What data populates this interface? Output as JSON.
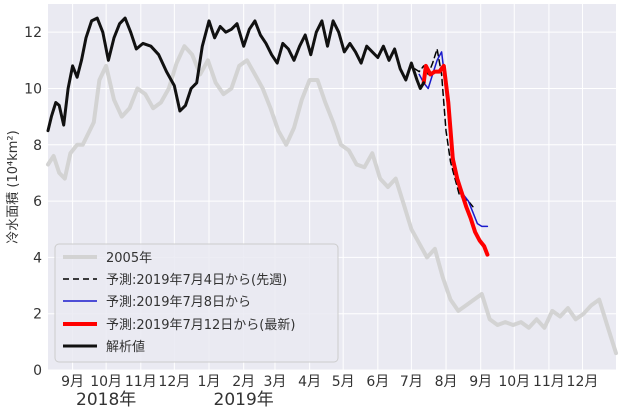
{
  "chart_data": {
    "type": "line",
    "ylabel": "冷水面積 (10⁴km²)",
    "ylim": [
      0,
      13
    ],
    "y_ticks": [
      0,
      2,
      4,
      6,
      8,
      10,
      12
    ],
    "x_range": [
      "2018-08-10",
      "2019-12-31"
    ],
    "x_ticks": [
      {
        "date": "2018-09-01",
        "label": "9月"
      },
      {
        "date": "2018-10-01",
        "label": "10月"
      },
      {
        "date": "2018-11-01",
        "label": "11月"
      },
      {
        "date": "2018-12-01",
        "label": "12月"
      },
      {
        "date": "2019-01-01",
        "label": "1月"
      },
      {
        "date": "2019-02-01",
        "label": "2月"
      },
      {
        "date": "2019-03-01",
        "label": "3月"
      },
      {
        "date": "2019-04-01",
        "label": "4月"
      },
      {
        "date": "2019-05-01",
        "label": "5月"
      },
      {
        "date": "2019-06-01",
        "label": "6月"
      },
      {
        "date": "2019-07-01",
        "label": "7月"
      },
      {
        "date": "2019-08-01",
        "label": "8月"
      },
      {
        "date": "2019-09-01",
        "label": "9月"
      },
      {
        "date": "2019-10-01",
        "label": "10月"
      },
      {
        "date": "2019-11-01",
        "label": "11月"
      },
      {
        "date": "2019-12-01",
        "label": "12月"
      }
    ],
    "year_labels": [
      {
        "date": "2018-10-01",
        "label": "2018年"
      },
      {
        "date": "2019-02-01",
        "label": "2019年"
      }
    ],
    "grid": true,
    "legend_position": "lower-left",
    "series": [
      {
        "name": "2005年",
        "color": "#d3d3d3",
        "width": 4,
        "dash": "",
        "points": [
          [
            "2018-08-10",
            7.3
          ],
          [
            "2018-08-15",
            7.6
          ],
          [
            "2018-08-20",
            7.0
          ],
          [
            "2018-08-25",
            6.8
          ],
          [
            "2018-08-30",
            7.7
          ],
          [
            "2018-09-05",
            8.0
          ],
          [
            "2018-09-10",
            8.0
          ],
          [
            "2018-09-15",
            8.4
          ],
          [
            "2018-09-20",
            8.8
          ],
          [
            "2018-09-25",
            10.3
          ],
          [
            "2018-10-01",
            10.8
          ],
          [
            "2018-10-08",
            9.6
          ],
          [
            "2018-10-15",
            9.0
          ],
          [
            "2018-10-22",
            9.3
          ],
          [
            "2018-10-29",
            10.0
          ],
          [
            "2018-11-05",
            9.8
          ],
          [
            "2018-11-12",
            9.3
          ],
          [
            "2018-11-19",
            9.5
          ],
          [
            "2018-11-26",
            10.0
          ],
          [
            "2018-12-03",
            10.9
          ],
          [
            "2018-12-10",
            11.5
          ],
          [
            "2018-12-17",
            11.2
          ],
          [
            "2018-12-24",
            10.5
          ],
          [
            "2018-12-31",
            11.0
          ],
          [
            "2019-01-07",
            10.2
          ],
          [
            "2019-01-14",
            9.8
          ],
          [
            "2019-01-21",
            10.0
          ],
          [
            "2019-01-28",
            10.8
          ],
          [
            "2019-02-04",
            11.0
          ],
          [
            "2019-02-11",
            10.5
          ],
          [
            "2019-02-18",
            10.0
          ],
          [
            "2019-02-25",
            9.3
          ],
          [
            "2019-03-04",
            8.5
          ],
          [
            "2019-03-11",
            8.0
          ],
          [
            "2019-03-18",
            8.6
          ],
          [
            "2019-03-25",
            9.6
          ],
          [
            "2019-04-01",
            10.3
          ],
          [
            "2019-04-08",
            10.3
          ],
          [
            "2019-04-15",
            9.5
          ],
          [
            "2019-04-22",
            8.8
          ],
          [
            "2019-04-29",
            8.0
          ],
          [
            "2019-05-06",
            7.8
          ],
          [
            "2019-05-13",
            7.3
          ],
          [
            "2019-05-20",
            7.2
          ],
          [
            "2019-05-27",
            7.7
          ],
          [
            "2019-06-03",
            6.8
          ],
          [
            "2019-06-10",
            6.5
          ],
          [
            "2019-06-17",
            6.8
          ],
          [
            "2019-06-24",
            5.9
          ],
          [
            "2019-07-01",
            5.0
          ],
          [
            "2019-07-08",
            4.5
          ],
          [
            "2019-07-15",
            4.0
          ],
          [
            "2019-07-22",
            4.3
          ],
          [
            "2019-07-29",
            3.3
          ],
          [
            "2019-08-05",
            2.5
          ],
          [
            "2019-08-12",
            2.1
          ],
          [
            "2019-08-19",
            2.3
          ],
          [
            "2019-08-26",
            2.5
          ],
          [
            "2019-09-02",
            2.7
          ],
          [
            "2019-09-09",
            1.8
          ],
          [
            "2019-09-16",
            1.6
          ],
          [
            "2019-09-23",
            1.7
          ],
          [
            "2019-09-30",
            1.6
          ],
          [
            "2019-10-07",
            1.7
          ],
          [
            "2019-10-14",
            1.5
          ],
          [
            "2019-10-21",
            1.8
          ],
          [
            "2019-10-28",
            1.5
          ],
          [
            "2019-11-04",
            2.1
          ],
          [
            "2019-11-11",
            1.9
          ],
          [
            "2019-11-18",
            2.2
          ],
          [
            "2019-11-25",
            1.8
          ],
          [
            "2019-12-02",
            2.0
          ],
          [
            "2019-12-09",
            2.3
          ],
          [
            "2019-12-16",
            2.5
          ],
          [
            "2019-12-23",
            1.6
          ],
          [
            "2019-12-31",
            0.6
          ]
        ]
      },
      {
        "name": "予測:2019年7月4日から(先週)",
        "color": "#000000",
        "width": 1.5,
        "dash": "6,4",
        "points": [
          [
            "2019-07-04",
            10.7
          ],
          [
            "2019-07-08",
            10.6
          ],
          [
            "2019-07-12",
            10.8
          ],
          [
            "2019-07-16",
            10.5
          ],
          [
            "2019-07-20",
            10.9
          ],
          [
            "2019-07-24",
            11.4
          ],
          [
            "2019-07-28",
            10.5
          ],
          [
            "2019-08-01",
            8.5
          ],
          [
            "2019-08-05",
            7.4
          ],
          [
            "2019-08-09",
            6.8
          ],
          [
            "2019-08-13",
            6.2
          ],
          [
            "2019-08-17",
            6.1
          ],
          [
            "2019-08-21",
            6.0
          ],
          [
            "2019-08-25",
            5.8
          ]
        ]
      },
      {
        "name": "予測:2019年7月8日から",
        "color": "#1a1acc",
        "width": 1.5,
        "dash": "",
        "points": [
          [
            "2019-07-08",
            10.5
          ],
          [
            "2019-07-12",
            10.2
          ],
          [
            "2019-07-16",
            10.0
          ],
          [
            "2019-07-20",
            10.5
          ],
          [
            "2019-07-24",
            11.0
          ],
          [
            "2019-07-28",
            11.3
          ],
          [
            "2019-08-01",
            10.0
          ],
          [
            "2019-08-05",
            8.5
          ],
          [
            "2019-08-09",
            7.2
          ],
          [
            "2019-08-13",
            6.6
          ],
          [
            "2019-08-17",
            6.2
          ],
          [
            "2019-08-21",
            6.0
          ],
          [
            "2019-08-25",
            5.6
          ],
          [
            "2019-08-29",
            5.2
          ],
          [
            "2019-09-02",
            5.1
          ],
          [
            "2019-09-07",
            5.1
          ]
        ]
      },
      {
        "name": "予測:2019年7月12日から(最新)",
        "color": "#ff0000",
        "width": 4,
        "dash": "",
        "points": [
          [
            "2019-07-12",
            10.2
          ],
          [
            "2019-07-14",
            10.8
          ],
          [
            "2019-07-18",
            10.5
          ],
          [
            "2019-07-22",
            10.6
          ],
          [
            "2019-07-26",
            10.6
          ],
          [
            "2019-07-30",
            10.8
          ],
          [
            "2019-08-03",
            9.5
          ],
          [
            "2019-08-07",
            7.5
          ],
          [
            "2019-08-11",
            6.8
          ],
          [
            "2019-08-15",
            6.3
          ],
          [
            "2019-08-19",
            5.8
          ],
          [
            "2019-08-23",
            5.4
          ],
          [
            "2019-08-27",
            4.9
          ],
          [
            "2019-08-31",
            4.6
          ],
          [
            "2019-09-04",
            4.4
          ],
          [
            "2019-09-07",
            4.1
          ]
        ]
      },
      {
        "name": "解析値",
        "color": "#111111",
        "width": 3,
        "dash": "",
        "points": [
          [
            "2018-08-10",
            8.5
          ],
          [
            "2018-08-13",
            9.0
          ],
          [
            "2018-08-17",
            9.5
          ],
          [
            "2018-08-20",
            9.4
          ],
          [
            "2018-08-24",
            8.7
          ],
          [
            "2018-08-28",
            10.0
          ],
          [
            "2018-09-01",
            10.8
          ],
          [
            "2018-09-05",
            10.4
          ],
          [
            "2018-09-09",
            11.0
          ],
          [
            "2018-09-13",
            11.8
          ],
          [
            "2018-09-18",
            12.4
          ],
          [
            "2018-09-23",
            12.5
          ],
          [
            "2018-09-28",
            12.0
          ],
          [
            "2018-10-03",
            11.0
          ],
          [
            "2018-10-08",
            11.8
          ],
          [
            "2018-10-13",
            12.3
          ],
          [
            "2018-10-18",
            12.5
          ],
          [
            "2018-10-23",
            12.0
          ],
          [
            "2018-10-28",
            11.4
          ],
          [
            "2018-11-03",
            11.6
          ],
          [
            "2018-11-10",
            11.5
          ],
          [
            "2018-11-17",
            11.2
          ],
          [
            "2018-11-24",
            10.6
          ],
          [
            "2018-12-01",
            10.1
          ],
          [
            "2018-12-06",
            9.2
          ],
          [
            "2018-12-11",
            9.4
          ],
          [
            "2018-12-16",
            10.0
          ],
          [
            "2018-12-21",
            10.2
          ],
          [
            "2018-12-26",
            11.5
          ],
          [
            "2019-01-01",
            12.4
          ],
          [
            "2019-01-06",
            11.8
          ],
          [
            "2019-01-11",
            12.2
          ],
          [
            "2019-01-16",
            12.0
          ],
          [
            "2019-01-21",
            12.1
          ],
          [
            "2019-01-26",
            12.3
          ],
          [
            "2019-02-01",
            11.5
          ],
          [
            "2019-02-06",
            12.1
          ],
          [
            "2019-02-11",
            12.4
          ],
          [
            "2019-02-16",
            11.9
          ],
          [
            "2019-02-21",
            11.6
          ],
          [
            "2019-02-26",
            11.2
          ],
          [
            "2019-03-03",
            10.9
          ],
          [
            "2019-03-08",
            11.6
          ],
          [
            "2019-03-13",
            11.4
          ],
          [
            "2019-03-18",
            11.0
          ],
          [
            "2019-03-23",
            11.5
          ],
          [
            "2019-03-28",
            11.9
          ],
          [
            "2019-04-02",
            11.2
          ],
          [
            "2019-04-07",
            12.0
          ],
          [
            "2019-04-12",
            12.4
          ],
          [
            "2019-04-17",
            11.5
          ],
          [
            "2019-04-22",
            12.4
          ],
          [
            "2019-04-27",
            12.0
          ],
          [
            "2019-05-02",
            11.3
          ],
          [
            "2019-05-07",
            11.6
          ],
          [
            "2019-05-12",
            11.3
          ],
          [
            "2019-05-17",
            10.9
          ],
          [
            "2019-05-22",
            11.5
          ],
          [
            "2019-05-27",
            11.3
          ],
          [
            "2019-06-01",
            11.1
          ],
          [
            "2019-06-06",
            11.5
          ],
          [
            "2019-06-11",
            11.0
          ],
          [
            "2019-06-16",
            11.4
          ],
          [
            "2019-06-21",
            10.7
          ],
          [
            "2019-06-26",
            10.3
          ],
          [
            "2019-07-01",
            10.9
          ],
          [
            "2019-07-06",
            10.3
          ],
          [
            "2019-07-09",
            10.0
          ],
          [
            "2019-07-12",
            10.2
          ]
        ]
      }
    ]
  }
}
